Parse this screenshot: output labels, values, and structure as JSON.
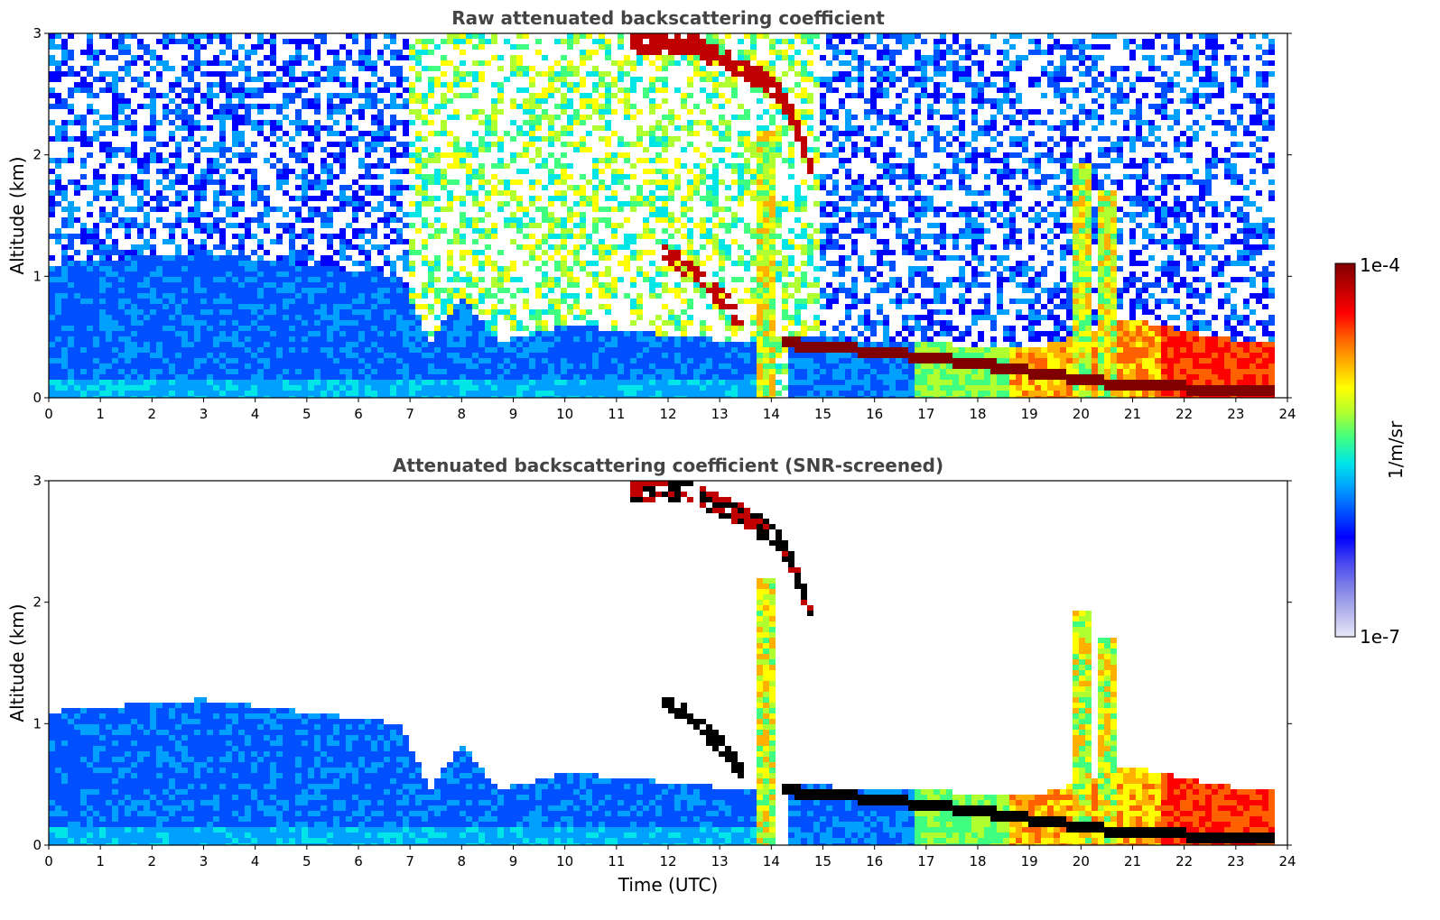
{
  "chart_data": [
    {
      "type": "heatmap",
      "title": "Raw attenuated backscattering coefficient",
      "xlabel": "",
      "ylabel": "Altitude (km)",
      "xlim": [
        0,
        24
      ],
      "ylim": [
        0,
        3
      ],
      "xticks": [
        "0",
        "1",
        "2",
        "3",
        "4",
        "5",
        "6",
        "7",
        "8",
        "9",
        "10",
        "11",
        "12",
        "13",
        "14",
        "15",
        "16",
        "17",
        "18",
        "19",
        "20",
        "21",
        "22",
        "23",
        "24"
      ],
      "yticks": [
        "0",
        "1",
        "2",
        "3"
      ],
      "screened": false,
      "features": {
        "boundary_layer": [
          {
            "t": 0,
            "z": 1.1
          },
          {
            "t": 3,
            "z": 1.2
          },
          {
            "t": 6.8,
            "z": 1.0
          },
          {
            "t": 7.4,
            "z": 0.45
          },
          {
            "t": 8,
            "z": 0.85
          },
          {
            "t": 8.7,
            "z": 0.45
          },
          {
            "t": 10,
            "z": 0.6
          },
          {
            "t": 13.7,
            "z": 0.45
          }
        ],
        "aerosol_layer_top": [
          {
            "t": 14.3,
            "z": 0.5
          },
          {
            "t": 17,
            "z": 0.45
          },
          {
            "t": 19,
            "z": 0.4
          },
          {
            "t": 21,
            "z": 0.65
          },
          {
            "t": 22.5,
            "z": 0.5
          },
          {
            "t": 23.8,
            "z": 0.45
          }
        ],
        "strong_layer": [
          {
            "t": 14.2,
            "z": 0.45
          },
          {
            "t": 16,
            "z": 0.38
          },
          {
            "t": 18,
            "z": 0.28
          },
          {
            "t": 20,
            "z": 0.15
          },
          {
            "t": 21,
            "z": 0.1
          },
          {
            "t": 23.8,
            "z": 0.05
          }
        ],
        "descending_cloud": [
          {
            "t": 11.3,
            "z": 2.9
          },
          {
            "t": 12.5,
            "z": 2.9
          },
          {
            "t": 13.5,
            "z": 2.7
          },
          {
            "t": 14.2,
            "z": 2.5
          },
          {
            "t": 14.8,
            "z": 1.9
          }
        ],
        "lower_cloud": [
          {
            "t": 11.9,
            "z": 1.2
          },
          {
            "t": 12.6,
            "z": 1.0
          },
          {
            "t": 13.2,
            "z": 0.75
          },
          {
            "t": 13.5,
            "z": 0.55
          }
        ],
        "convective_columns": [
          {
            "t": 13.9,
            "z": 2.2
          },
          {
            "t": 20.0,
            "z": 1.95
          },
          {
            "t": 20.5,
            "z": 1.7
          }
        ]
      }
    },
    {
      "type": "heatmap",
      "title": "Attenuated backscattering coefficient (SNR-screened)",
      "xlabel": "Time (UTC)",
      "ylabel": "Altitude (km)",
      "xlim": [
        0,
        24
      ],
      "ylim": [
        0,
        3
      ],
      "xticks": [
        "0",
        "1",
        "2",
        "3",
        "4",
        "5",
        "6",
        "7",
        "8",
        "9",
        "10",
        "11",
        "12",
        "13",
        "14",
        "15",
        "16",
        "17",
        "18",
        "19",
        "20",
        "21",
        "22",
        "23",
        "24"
      ],
      "yticks": [
        "0",
        "1",
        "2",
        "3"
      ],
      "screened": true
    }
  ],
  "colorbar": {
    "label": "1/m/sr",
    "max_label": "1e-4",
    "min_label": "1e-7",
    "scale": "log",
    "colors": [
      "#e8e8f8",
      "#b4b4ec",
      "#8080e8",
      "#4646f0",
      "#0000ff",
      "#0050ff",
      "#00a0ff",
      "#00e6e6",
      "#40ff80",
      "#b0ff30",
      "#ffff00",
      "#ffb000",
      "#ff6000",
      "#ff0000",
      "#c00000",
      "#800000"
    ]
  }
}
